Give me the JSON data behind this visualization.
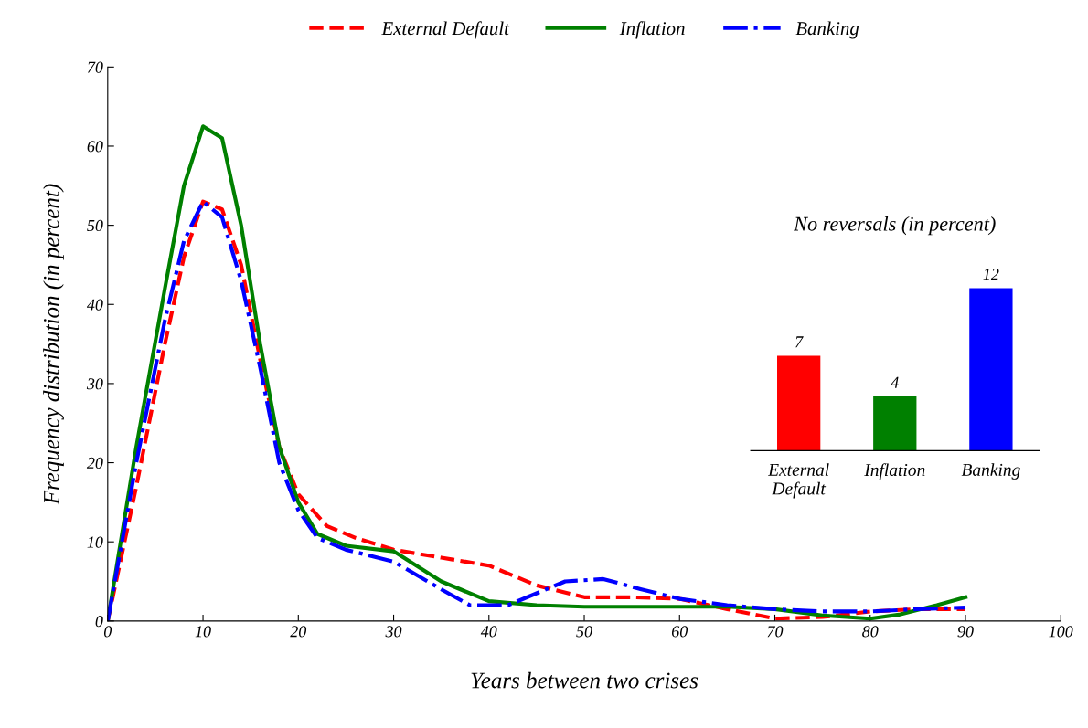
{
  "chart_data": [
    {
      "type": "line",
      "xlabel": "Years between two crises",
      "ylabel": "Frequency distribution (in percent)",
      "xlim": [
        0,
        100
      ],
      "xticks": [
        0,
        10,
        20,
        30,
        40,
        50,
        60,
        70,
        80,
        90,
        100
      ],
      "ylim": [
        0,
        70
      ],
      "yticks": [
        0,
        10,
        20,
        30,
        40,
        50,
        60,
        70
      ],
      "grid": false,
      "legend": "top",
      "series": [
        {
          "name": "External Default",
          "color": "#ff0000",
          "line_style": "dashed",
          "x": [
            0,
            3,
            6,
            8,
            10,
            12,
            14,
            16,
            18,
            20,
            23,
            26,
            30,
            35,
            40,
            45,
            50,
            55,
            60,
            65,
            70,
            75,
            80,
            85,
            90
          ],
          "values": [
            0,
            17,
            35,
            46,
            53,
            52,
            45,
            33,
            22,
            16,
            12,
            10.5,
            9,
            8,
            7,
            4.5,
            3,
            3,
            2.8,
            1.5,
            0.3,
            0.5,
            1.2,
            1.5,
            1.5
          ]
        },
        {
          "name": "Inflation",
          "color": "#008000",
          "line_style": "solid",
          "x": [
            0,
            3,
            6,
            8,
            10,
            12,
            14,
            16,
            18,
            20,
            22,
            25,
            30,
            35,
            40,
            45,
            50,
            55,
            60,
            65,
            70,
            75,
            80,
            83,
            87,
            90
          ],
          "values": [
            0,
            22,
            42,
            55,
            62.5,
            61,
            50,
            35,
            22,
            15,
            11,
            9.5,
            8.8,
            5,
            2.5,
            2,
            1.8,
            1.8,
            1.8,
            1.8,
            1.5,
            0.7,
            0.3,
            0.8,
            2,
            3
          ]
        },
        {
          "name": "Banking",
          "color": "#0000ff",
          "line_style": "dashdot",
          "x": [
            0,
            3,
            6,
            8,
            10,
            12,
            14,
            16,
            18,
            20,
            22,
            25,
            30,
            35,
            38,
            42,
            45,
            48,
            52,
            56,
            60,
            65,
            70,
            75,
            80,
            85,
            90
          ],
          "values": [
            0,
            20,
            38,
            48,
            53,
            51,
            43,
            32,
            20,
            14,
            10.5,
            9,
            7.5,
            4,
            2,
            2,
            3.5,
            5,
            5.3,
            4,
            2.8,
            2,
            1.5,
            1.2,
            1.2,
            1.5,
            1.7
          ]
        }
      ]
    },
    {
      "type": "bar",
      "title": "No reversals (in percent)",
      "categories": [
        "External\nDefault",
        "Inflation",
        "Banking"
      ],
      "values": [
        7,
        4,
        12
      ],
      "colors": [
        "#ff0000",
        "#008000",
        "#0000ff"
      ],
      "data_labels": true,
      "tick_labels": "x"
    }
  ]
}
